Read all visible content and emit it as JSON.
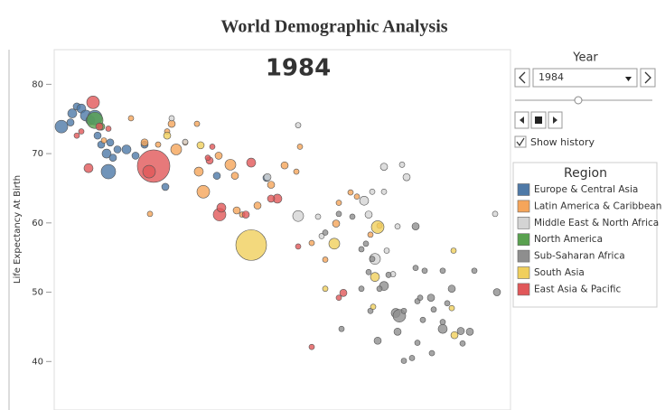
{
  "chart_data": {
    "type": "scatter",
    "title": "World Demographic Analysis",
    "year": "1984",
    "y_label": "Life Expectancy At Birth",
    "xlim": [
      0.6,
      5.65
    ],
    "ylim": [
      33,
      85
    ],
    "yticks": [
      40,
      50,
      60,
      70,
      80
    ],
    "legend_title": "Region",
    "series": [
      {
        "name": "Europe & Central Asia",
        "color": "#4e79a7",
        "x": [
          0.68,
          0.8,
          0.85,
          0.9,
          0.95,
          1.0,
          1.05,
          1.08,
          1.12,
          1.18,
          1.2,
          1.25,
          1.4,
          1.5,
          1.83,
          2.4,
          2.95,
          0.78,
          1.22,
          1.3,
          1.6
        ],
        "values": [
          73.9,
          75.8,
          76.8,
          76.5,
          75.5,
          74.8,
          75.2,
          72.6,
          71.3,
          70.0,
          67.4,
          69.4,
          70.6,
          69.7,
          65.2,
          66.8,
          66.5,
          74.5,
          71.6,
          70.6,
          71.3
        ],
        "sizes": [
          151,
          77,
          49,
          77,
          111,
          77,
          197,
          49,
          49,
          77,
          197,
          49,
          77,
          49,
          49,
          49,
          49,
          49,
          49,
          49,
          49
        ]
      },
      {
        "name": "Latin America & Caribbean",
        "color": "#f5a55a",
        "x": [
          1.15,
          1.45,
          1.6,
          1.75,
          1.85,
          1.9,
          1.95,
          2.05,
          2.18,
          2.2,
          2.25,
          2.42,
          2.55,
          2.6,
          2.62,
          2.68,
          2.85,
          3.0,
          3.15,
          3.28,
          3.32,
          3.45,
          3.6,
          3.72,
          3.75,
          3.88,
          3.95,
          4.1,
          4.2,
          1.66
        ],
        "values": [
          71.9,
          75.1,
          71.6,
          71.3,
          73.2,
          74.3,
          70.6,
          71.6,
          74.3,
          67.4,
          64.5,
          69.7,
          68.4,
          66.8,
          61.8,
          61.2,
          62.5,
          65.5,
          68.3,
          67.4,
          71.0,
          57.1,
          54.7,
          59.9,
          62.9,
          64.4,
          63.8,
          58.3,
          59.6,
          61.3
        ],
        "sizes": [
          28,
          28,
          49,
          28,
          28,
          49,
          111,
          28,
          28,
          77,
          151,
          49,
          111,
          49,
          49,
          28,
          49,
          49,
          49,
          28,
          28,
          28,
          28,
          49,
          28,
          28,
          28,
          28,
          28,
          28
        ]
      },
      {
        "name": "Middle East & North Africa",
        "color": "#d4d4d4",
        "x": [
          1.9,
          2.05,
          2.96,
          3.3,
          3.52,
          3.56,
          4.03,
          4.08,
          4.12,
          4.25,
          4.15,
          4.28,
          4.4,
          4.25,
          4.45,
          4.5,
          5.48,
          3.3,
          4.35
        ],
        "values": [
          75.1,
          71.7,
          66.6,
          61.0,
          60.9,
          58.1,
          63.2,
          61.2,
          64.5,
          64.5,
          54.8,
          56.0,
          59.5,
          68.1,
          68.4,
          66.6,
          61.3,
          74.1,
          52.6
        ],
        "sizes": [
          28,
          28,
          49,
          111,
          28,
          28,
          77,
          49,
          28,
          28,
          111,
          28,
          28,
          49,
          28,
          49,
          28,
          28,
          28
        ]
      },
      {
        "name": "North America",
        "color": "#59a14f",
        "x": [
          1.05,
          1.12
        ],
        "values": [
          74.8,
          73.9
        ],
        "sizes": [
          250,
          49
        ]
      },
      {
        "name": "Sub-Saharan Africa",
        "color": "#8e8e8e",
        "x": [
          3.6,
          3.75,
          3.9,
          4.0,
          4.05,
          4.12,
          4.25,
          4.3,
          4.38,
          4.42,
          4.47,
          4.6,
          4.6,
          4.62,
          4.65,
          4.68,
          4.7,
          4.2,
          4.18,
          4.4,
          4.56,
          4.47,
          4.62,
          4.77,
          4.8,
          4.78,
          4.9,
          4.95,
          5.0,
          5.1,
          5.12,
          5.2,
          4.0,
          4.1,
          3.78,
          5.25,
          4.9,
          4.08,
          5.5,
          4.9
        ],
        "values": [
          58.6,
          61.3,
          60.9,
          56.2,
          57.0,
          54.8,
          50.9,
          52.5,
          47.0,
          46.6,
          47.3,
          59.5,
          53.5,
          48.7,
          49.2,
          46.0,
          53.1,
          50.5,
          43.0,
          44.3,
          40.5,
          40.1,
          42.7,
          49.2,
          47.5,
          41.2,
          45.7,
          48.4,
          50.5,
          44.4,
          42.6,
          44.3,
          50.5,
          47.3,
          44.7,
          53.1,
          44.7,
          52.9,
          50.0,
          53.1
        ],
        "sizes": [
          28,
          28,
          28,
          28,
          28,
          28,
          77,
          28,
          77,
          151,
          28,
          49,
          28,
          28,
          28,
          28,
          28,
          28,
          49,
          49,
          28,
          28,
          28,
          49,
          28,
          28,
          28,
          28,
          49,
          49,
          28,
          49,
          28,
          28,
          28,
          28,
          77,
          28,
          49,
          28
        ]
      },
      {
        "name": "South Asia",
        "color": "#f0cf5c",
        "x": [
          2.78,
          1.85,
          2.22,
          3.7,
          4.18,
          4.15,
          3.6,
          4.13,
          5.03,
          5.0,
          5.02
        ],
        "values": [
          56.8,
          72.6,
          71.2,
          57.0,
          59.4,
          52.2,
          50.5,
          47.9,
          43.8,
          47.7,
          56.0
        ],
        "sizes": [
          889,
          49,
          49,
          111,
          151,
          77,
          28,
          28,
          49,
          28,
          28
        ]
      },
      {
        "name": "East Asia & Pacific",
        "color": "#e15759",
        "x": [
          1.7,
          1.03,
          0.98,
          1.65,
          2.32,
          2.43,
          2.45,
          2.78,
          3.07,
          2.35,
          2.3,
          1.1,
          1.2,
          0.85,
          3.0,
          3.45,
          3.8,
          3.75,
          0.9,
          2.72,
          3.3
        ],
        "values": [
          68.2,
          77.4,
          67.9,
          67.4,
          69.0,
          61.2,
          62.2,
          68.7,
          63.5,
          71.0,
          69.4,
          73.9,
          73.6,
          72.6,
          63.5,
          42.1,
          49.9,
          49.2,
          73.2,
          61.2,
          56.6
        ],
        "sizes": [
          997,
          151,
          77,
          151,
          49,
          151,
          77,
          77,
          77,
          28,
          28,
          49,
          28,
          28,
          49,
          28,
          49,
          28,
          28,
          49,
          28
        ]
      }
    ]
  },
  "controls": {
    "year_label": "Year",
    "show_history": "Show history"
  }
}
